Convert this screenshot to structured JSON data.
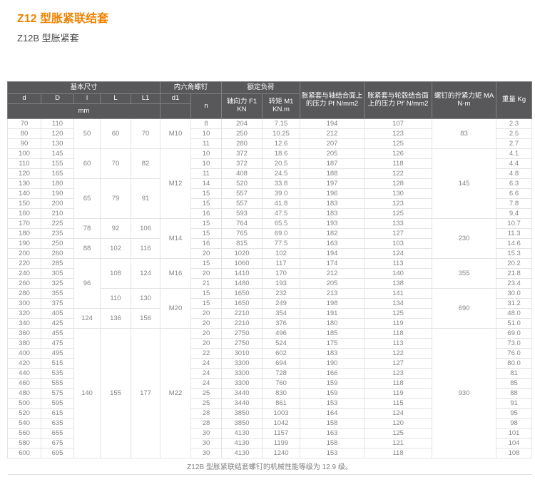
{
  "page": {
    "title": "Z12 型胀紧联结套",
    "subtitle": "Z12B 型胀紧套",
    "footnote": "Z12B 型胀紧联结套螺钉的机械性能等级为 12.9 级。",
    "accent_color": "#f08200",
    "header_bg": "#58585a"
  },
  "table": {
    "header": {
      "group_basic": "基本尺寸",
      "group_screw": "内六角螺钉",
      "group_load": "额定负荷",
      "col_d": "d",
      "col_D": "D",
      "col_l": "l",
      "col_L": "L",
      "col_L1": "L1",
      "col_d1": "d1",
      "col_n": "n",
      "col_axial": "轴向力 F1 KN",
      "col_torque": "转矩 M1 KN.m",
      "col_shaft_pressure": "胀紧套与轴结合面上的压力 Pf N/mm2",
      "col_hub_pressure": "胀紧套与轮毂结合面上的压力 Pf' N/mm2",
      "col_tightening_torque": "螺钉的拧紧力矩 MA N·m",
      "col_weight": "重量 Kg",
      "unit_mm": "mm"
    },
    "columns_order": [
      "d",
      "D",
      "l",
      "L",
      "L1",
      "d1",
      "n",
      "轴向力 F1 KN",
      "转矩 M1 KN.m",
      "Pf N/mm2",
      "Pf' N/mm2",
      "MA N·m",
      "重量 Kg"
    ],
    "rows": [
      [
        "70",
        "110",
        [
          "50",
          3
        ],
        [
          "60",
          3
        ],
        [
          "70",
          3
        ],
        [
          "M10",
          3
        ],
        "8",
        "204",
        "7.15",
        "194",
        "107",
        [
          "83",
          3
        ],
        "2.3"
      ],
      [
        "80",
        "120",
        null,
        null,
        null,
        null,
        "10",
        "250",
        "10.25",
        "212",
        "123",
        null,
        "2.5"
      ],
      [
        "90",
        "130",
        null,
        null,
        null,
        null,
        "11",
        "280",
        "12.6",
        "207",
        "125",
        null,
        "2.7"
      ],
      [
        "100",
        "145",
        [
          "60",
          3
        ],
        [
          "70",
          3
        ],
        [
          "82",
          3
        ],
        [
          "M12",
          7
        ],
        "10",
        "372",
        "18.6",
        "205",
        "126",
        [
          "145",
          7
        ],
        "4.1"
      ],
      [
        "110",
        "155",
        null,
        null,
        null,
        null,
        "10",
        "372",
        "20.5",
        "187",
        "118",
        null,
        "4.4"
      ],
      [
        "120",
        "165",
        null,
        null,
        null,
        null,
        "11",
        "408",
        "24.5",
        "188",
        "122",
        null,
        "4.8"
      ],
      [
        "130",
        "180",
        [
          "65",
          4
        ],
        [
          "79",
          4
        ],
        [
          "91",
          4
        ],
        null,
        "14",
        "520",
        "33.8",
        "197",
        "128",
        null,
        "6.3"
      ],
      [
        "140",
        "190",
        null,
        null,
        null,
        null,
        "15",
        "557",
        "39.0",
        "196",
        "130",
        null,
        "6.6"
      ],
      [
        "150",
        "200",
        null,
        null,
        null,
        null,
        "15",
        "557",
        "41.8",
        "183",
        "123",
        null,
        "7.8"
      ],
      [
        "160",
        "210",
        null,
        null,
        null,
        null,
        "16",
        "593",
        "47.5",
        "183",
        "125",
        null,
        "9.4"
      ],
      [
        "170",
        "225",
        [
          "78",
          2
        ],
        [
          "92",
          2
        ],
        [
          "106",
          2
        ],
        [
          "M14",
          4
        ],
        "15",
        "764",
        "65.5",
        "193",
        "133",
        [
          "230",
          4
        ],
        "10.7"
      ],
      [
        "180",
        "235",
        null,
        null,
        null,
        null,
        "15",
        "765",
        "69.0",
        "182",
        "127",
        null,
        "11.3"
      ],
      [
        "190",
        "250",
        [
          "88",
          2
        ],
        [
          "102",
          2
        ],
        [
          "116",
          2
        ],
        null,
        "16",
        "815",
        "77.5",
        "163",
        "103",
        null,
        "14.6"
      ],
      [
        "200",
        "260",
        null,
        null,
        null,
        null,
        "20",
        "1020",
        "102",
        "194",
        "124",
        null,
        "15.3"
      ],
      [
        "220",
        "285",
        [
          "96",
          5
        ],
        [
          "108",
          3
        ],
        [
          "124",
          3
        ],
        [
          "M16",
          3
        ],
        "15",
        "1060",
        "117",
        "174",
        "113",
        [
          "355",
          3
        ],
        "20.2"
      ],
      [
        "240",
        "305",
        null,
        null,
        null,
        null,
        "20",
        "1410",
        "170",
        "212",
        "140",
        null,
        "21.8"
      ],
      [
        "260",
        "325",
        null,
        null,
        null,
        null,
        "21",
        "1480",
        "193",
        "205",
        "138",
        null,
        "23.4"
      ],
      [
        "280",
        "355",
        null,
        [
          "110",
          2
        ],
        [
          "130",
          2
        ],
        [
          "M20",
          4
        ],
        "15",
        "1650",
        "232",
        "213",
        "141",
        [
          "690",
          4
        ],
        "30.0"
      ],
      [
        "300",
        "375",
        null,
        null,
        null,
        null,
        "15",
        "1650",
        "249",
        "198",
        "134",
        null,
        "31.2"
      ],
      [
        "320",
        "405",
        [
          "124",
          2
        ],
        [
          "136",
          2
        ],
        [
          "156",
          2
        ],
        null,
        "20",
        "2210",
        "354",
        "191",
        "125",
        null,
        "48.0"
      ],
      [
        "340",
        "425",
        null,
        null,
        null,
        null,
        "20",
        "2210",
        "376",
        "180",
        "119",
        null,
        "51.0"
      ],
      [
        "360",
        "455",
        [
          "140",
          13
        ],
        [
          "155",
          13
        ],
        [
          "177",
          13
        ],
        [
          "M22",
          13
        ],
        "20",
        "2750",
        "496",
        "185",
        "118",
        [
          "930",
          13
        ],
        "69.0"
      ],
      [
        "380",
        "475",
        null,
        null,
        null,
        null,
        "20",
        "2750",
        "524",
        "175",
        "113",
        null,
        "73.0"
      ],
      [
        "400",
        "495",
        null,
        null,
        null,
        null,
        "22",
        "3010",
        "602",
        "183",
        "122",
        null,
        "76.0"
      ],
      [
        "420",
        "515",
        null,
        null,
        null,
        null,
        "24",
        "3300",
        "694",
        "190",
        "127",
        null,
        "80.0"
      ],
      [
        "440",
        "535",
        null,
        null,
        null,
        null,
        "24",
        "3300",
        "728",
        "166",
        "123",
        null,
        "81"
      ],
      [
        "460",
        "555",
        null,
        null,
        null,
        null,
        "24",
        "3300",
        "760",
        "159",
        "118",
        null,
        "85"
      ],
      [
        "480",
        "575",
        null,
        null,
        null,
        null,
        "25",
        "3440",
        "830",
        "159",
        "119",
        null,
        "88"
      ],
      [
        "500",
        "595",
        null,
        null,
        null,
        null,
        "25",
        "3440",
        "861",
        "153",
        "115",
        null,
        "91"
      ],
      [
        "520",
        "615",
        null,
        null,
        null,
        null,
        "28",
        "3850",
        "1003",
        "164",
        "124",
        null,
        "95"
      ],
      [
        "540",
        "635",
        null,
        null,
        null,
        null,
        "28",
        "3850",
        "1042",
        "158",
        "120",
        null,
        "98"
      ],
      [
        "560",
        "655",
        null,
        null,
        null,
        null,
        "30",
        "4130",
        "1157",
        "163",
        "125",
        null,
        "101"
      ],
      [
        "580",
        "675",
        null,
        null,
        null,
        null,
        "30",
        "4130",
        "1199",
        "158",
        "121",
        null,
        "104"
      ],
      [
        "600",
        "695",
        null,
        null,
        null,
        null,
        "30",
        "4130",
        "1240",
        "153",
        "118",
        null,
        "108"
      ]
    ]
  }
}
